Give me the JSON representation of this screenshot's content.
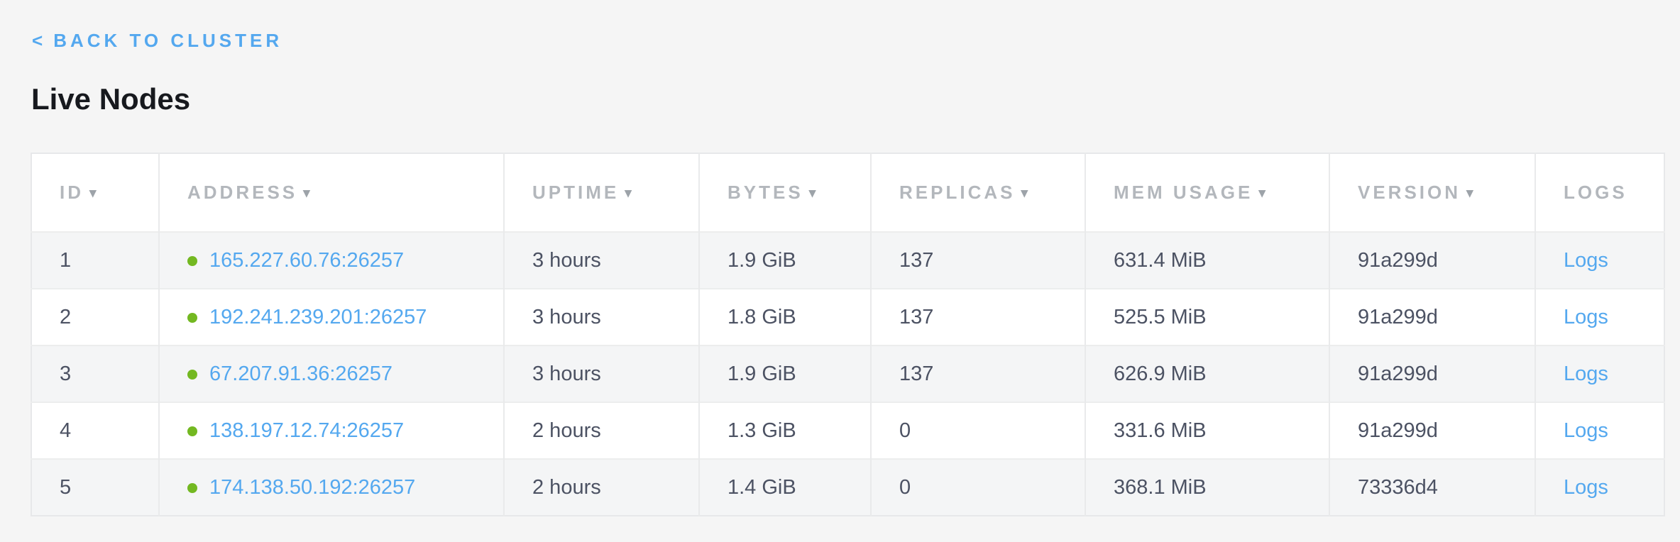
{
  "header": {
    "back_chevron": "<",
    "back_label": "BACK TO CLUSTER",
    "title": "Live Nodes"
  },
  "icons": {
    "sort_arrow": "▾",
    "status_dot": "live-green-dot"
  },
  "colors": {
    "link_blue": "#54a8ef",
    "live_dot_green": "#73b821",
    "header_text_gray": "#b3b7bc",
    "cell_text": "#4c5263",
    "row_stripe": "#f4f5f6",
    "page_background": "#f5f5f5"
  },
  "table": {
    "columns": [
      {
        "key": "id",
        "label": "ID",
        "sortable": true
      },
      {
        "key": "address",
        "label": "ADDRESS",
        "sortable": true
      },
      {
        "key": "uptime",
        "label": "UPTIME",
        "sortable": true
      },
      {
        "key": "bytes",
        "label": "BYTES",
        "sortable": true
      },
      {
        "key": "replicas",
        "label": "REPLICAS",
        "sortable": true
      },
      {
        "key": "mem_usage",
        "label": "MEM USAGE",
        "sortable": true
      },
      {
        "key": "version",
        "label": "VERSION",
        "sortable": true
      },
      {
        "key": "logs",
        "label": "LOGS",
        "sortable": false
      }
    ],
    "rows": [
      {
        "id": "1",
        "status": "live",
        "address": "165.227.60.76:26257",
        "uptime": "3 hours",
        "bytes": "1.9 GiB",
        "replicas": "137",
        "mem_usage": "631.4 MiB",
        "version": "91a299d",
        "logs_label": "Logs"
      },
      {
        "id": "2",
        "status": "live",
        "address": "192.241.239.201:26257",
        "uptime": "3 hours",
        "bytes": "1.8 GiB",
        "replicas": "137",
        "mem_usage": "525.5 MiB",
        "version": "91a299d",
        "logs_label": "Logs"
      },
      {
        "id": "3",
        "status": "live",
        "address": "67.207.91.36:26257",
        "uptime": "3 hours",
        "bytes": "1.9 GiB",
        "replicas": "137",
        "mem_usage": "626.9 MiB",
        "version": "91a299d",
        "logs_label": "Logs"
      },
      {
        "id": "4",
        "status": "live",
        "address": "138.197.12.74:26257",
        "uptime": "2 hours",
        "bytes": "1.3 GiB",
        "replicas": "0",
        "mem_usage": "331.6 MiB",
        "version": "91a299d",
        "logs_label": "Logs"
      },
      {
        "id": "5",
        "status": "live",
        "address": "174.138.50.192:26257",
        "uptime": "2 hours",
        "bytes": "1.4 GiB",
        "replicas": "0",
        "mem_usage": "368.1 MiB",
        "version": "73336d4",
        "logs_label": "Logs"
      }
    ]
  }
}
